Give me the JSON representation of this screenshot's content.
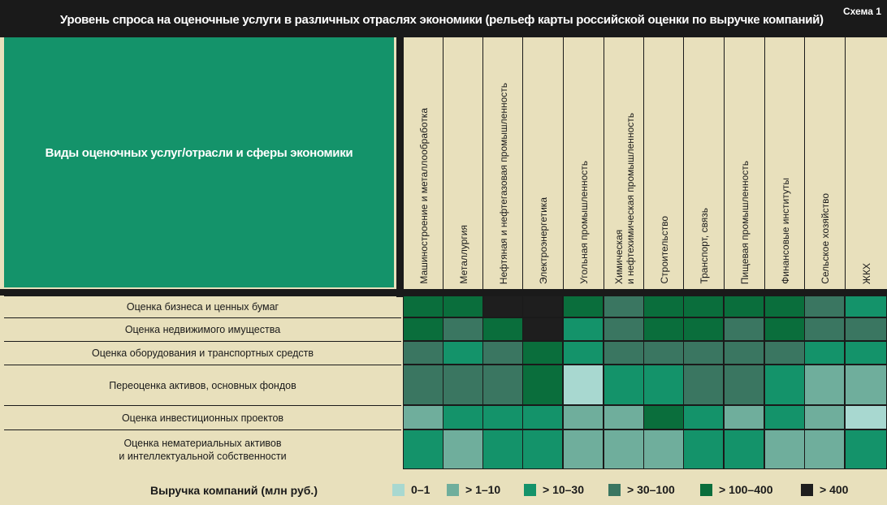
{
  "title": "Уровень спроса на оценочные услуги в различных отраслях экономики (рельеф карты российской оценки по выручке компаний)",
  "scheme_label": "Схема 1",
  "corner_label": "Виды оценочных услуг/отрасли и сферы экономики",
  "legend_title": "Выручка компаний (млн руб.)",
  "colors": {
    "0": "#a8d8d0",
    "1": "#6fae9c",
    "2": "#14936a",
    "3": "#3a7661",
    "4": "#0a6e3c",
    "5": "#1e1e1e"
  },
  "chart_data": {
    "type": "heatmap",
    "columns": [
      "Машиностроение и металлообработка",
      "Металлургия",
      "Нефтяная и нефтегазовая промышленность",
      "Электроэнергетика",
      "Угольная промышленность",
      "Химическая\nи нефтехимическая промышленность",
      "Строительство",
      "Транспорт, связь",
      "Пищевая промышленность",
      "Финансовые институты",
      "Сельское хозяйство",
      "ЖКХ"
    ],
    "rows": [
      "Оценка бизнеса и ценных бумаг",
      "Оценка недвижимого имущества",
      "Оценка оборудования и транспортных средств",
      "Переоценка активов, основных фондов",
      "Оценка инвестиционных проектов",
      "Оценка нематериальных активов\nи интеллектуальной собственности"
    ],
    "legend": [
      "0–1",
      "> 1–10",
      "> 10–30",
      "> 30–100",
      "> 100–400",
      "> 400"
    ],
    "levels": [
      [
        4,
        4,
        5,
        5,
        4,
        3,
        4,
        4,
        4,
        4,
        3,
        2
      ],
      [
        4,
        3,
        4,
        5,
        2,
        3,
        4,
        4,
        3,
        4,
        3,
        3
      ],
      [
        3,
        2,
        3,
        4,
        2,
        3,
        3,
        3,
        3,
        3,
        2,
        2
      ],
      [
        3,
        3,
        3,
        4,
        0,
        2,
        2,
        3,
        3,
        2,
        1,
        1
      ],
      [
        1,
        2,
        2,
        2,
        1,
        1,
        4,
        2,
        1,
        2,
        1,
        0
      ],
      [
        2,
        1,
        2,
        2,
        1,
        1,
        1,
        2,
        2,
        1,
        1,
        2
      ]
    ]
  }
}
